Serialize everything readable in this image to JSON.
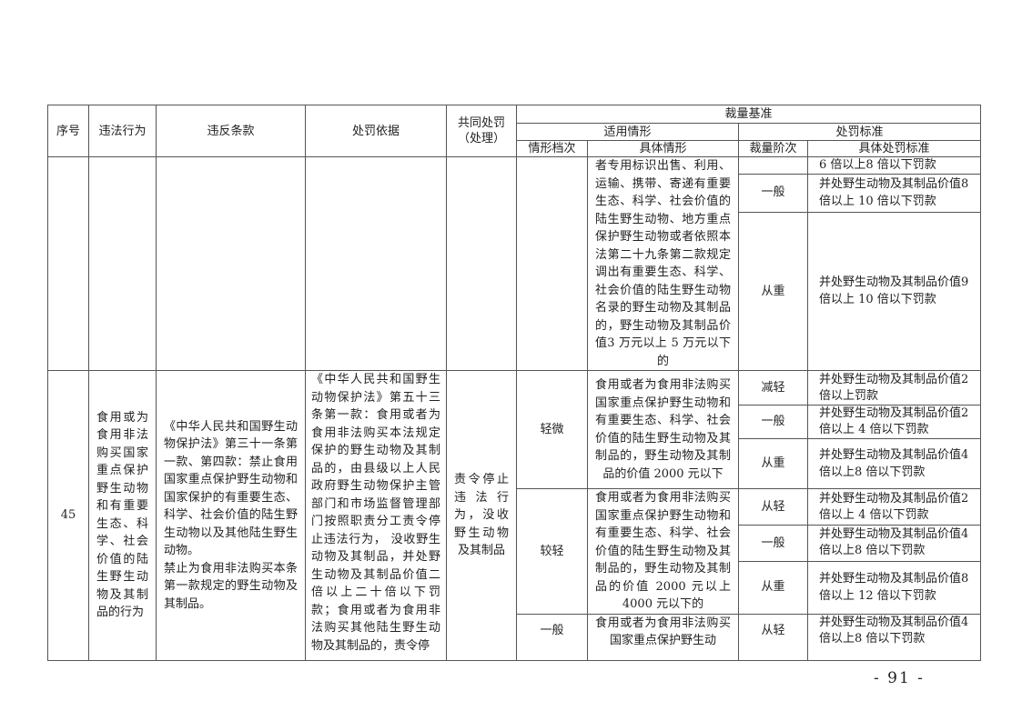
{
  "header": {
    "seq": "序号",
    "act": "违法行为",
    "clause": "违反条款",
    "basis": "处罚依据",
    "common": "共同处罚（处理）",
    "discretion": "裁量基准",
    "applicable": "适用情形",
    "standard": "处罚标准",
    "grade": "情形档次",
    "situation": "具体情形",
    "level": "裁量阶次",
    "detail": "具体处罚标准"
  },
  "continued": {
    "situation": "者专用标识出售、利用、运输、携带、寄递有重要生态、科学、社会价值的陆生野生动物、地方重点保护野生动物或者依照本法第二十九条第二款规定调出有重要生态、科学、社会价值的陆生野生动物名录的野生动物及其制品的，野生动物及其制品价值3 万元以上 5 万元以下的",
    "rows": [
      {
        "level": "",
        "standard": "6 倍以上8 倍以下罚款"
      },
      {
        "level": "一般",
        "standard": "并处野生动物及其制品价值8 倍以上 10 倍以下罚款"
      },
      {
        "level": "从重",
        "standard": "并处野生动物及其制品价值9 倍以上 10 倍以下罚款"
      }
    ]
  },
  "item45": {
    "seq": "45",
    "act": "食用或为食用非法购买国家重点保护野生动物和有重要生态、科学、社会价值的陆生野生动物及其制品的行为",
    "clause": "《中华人民共和国野生动物保护法》第三十一条第一款、第四款：禁止食用国家重点保护野生动物和国家保护的有重要生态、科学、社会价值的陆生野生动物以及其他陆生野生动物。\n禁止为食用非法购买本条第一款规定的野生动物及其制品。",
    "basis": "《中华人民共和国野生动物保护法》第五十三条第一款：食用或者为食用非法购买本法规定保护的野生动物及其制品的，由县级以上人民政府野生动物保护主管部门和市场监督管理部门按照职责分工责令停止违法行为， 没收野生 动物及其制品，并处野 生动物及其制品价值二 倍以上二十倍以下罚　 款；食用或者为食用非 法购买其他陆生野生动 物及其制品的，责令停",
    "common": "责令停止违法行为，没收野生动物及其制品",
    "grades": [
      {
        "grade": "轻微",
        "situation": "食用或者为食用非法购买国家重点保护野生动物和有重要生态、科学、社会价值的陆生野生动物及其制品的，野生动物及其制品的价值 2000 元以下",
        "rows": [
          {
            "level": "减轻",
            "standard": "并处野生动物及其制品价值2 倍以上罚款"
          },
          {
            "level": "一般",
            "standard": "并处野生动物及其制品价值2 倍以上 4 倍以下罚款"
          },
          {
            "level": "从重",
            "standard": "并处野生动物及其制品价值4 倍以上8 倍以下罚款"
          }
        ]
      },
      {
        "grade": "较轻",
        "situation": "食用或者为食用非法购买国家重点保护野生动物和有重要生态、科学、社会价值的陆生野生动物及其制品的，野生动物及其制品的价值 2000 元以上 4000 元以下的",
        "rows": [
          {
            "level": "从轻",
            "standard": "并处野生动物及其制品价值2 倍以上 4 倍以下罚款"
          },
          {
            "level": "一般",
            "standard": "并处野生动物及其制品价值4 倍以上8 倍以下罚款"
          },
          {
            "level": "从重",
            "standard": "并处野生动物及其制品价值8 倍以上 12 倍以下罚款"
          }
        ]
      },
      {
        "grade": "一般",
        "situation": "食用或者为食用非法购买国家重点保护野生动",
        "rows": [
          {
            "level": "从轻",
            "standard": "并处野生动物及其制品价值4 倍以上8 倍以下罚款"
          }
        ]
      }
    ]
  },
  "page_number": "- 91 -"
}
